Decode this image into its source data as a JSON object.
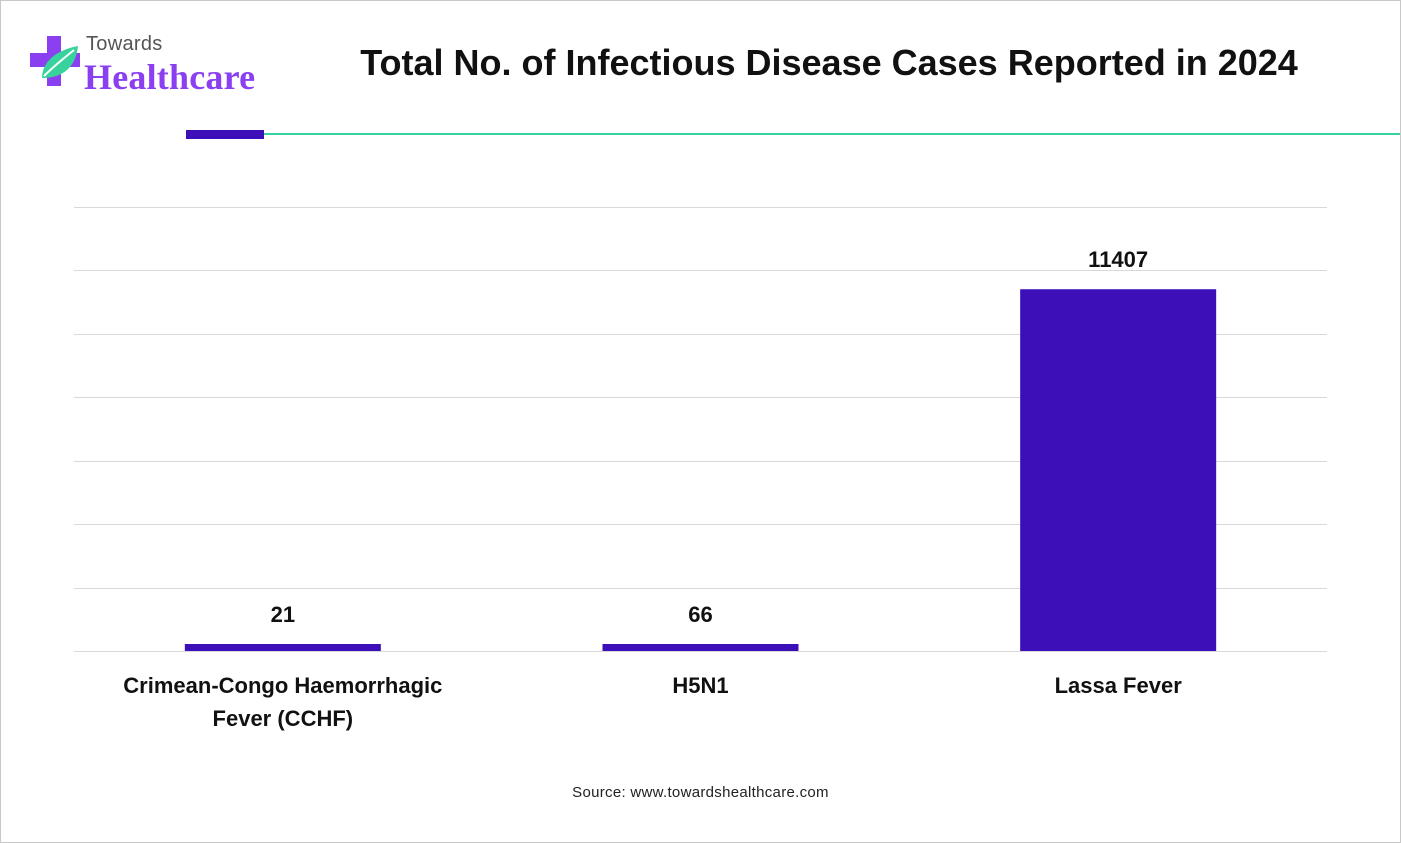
{
  "brand": {
    "towards": "Towards",
    "healthcare": "Healthcare",
    "accent_color": "#3d0fb8",
    "line_color": "#38d39c",
    "logo_purple": "#8a3ff0",
    "logo_green": "#38d39c"
  },
  "title": "Total No. of Infectious Disease Cases Reported in 2024",
  "source": "Source: www.towardshealthcare.com",
  "chart_data": {
    "type": "bar",
    "title": "Total No. of Infectious Disease Cases Reported in 2024",
    "categories": [
      "Crimean-Congo Haemorrhagic Fever (CCHF)",
      "H5N1",
      "Lassa Fever"
    ],
    "category_lines": [
      [
        "Crimean-Congo Haemorrhagic",
        "Fever (CCHF)"
      ],
      [
        "H5N1"
      ],
      [
        "Lassa Fever"
      ]
    ],
    "values": [
      21,
      66,
      11407
    ],
    "data_labels": [
      "21",
      "66",
      "11407"
    ],
    "ylim": [
      0,
      14000
    ],
    "y_axis_labels_shown": false,
    "grid": true,
    "legend": "none",
    "bar_color": "#3d0fb8",
    "xlabel": "",
    "ylabel": ""
  }
}
